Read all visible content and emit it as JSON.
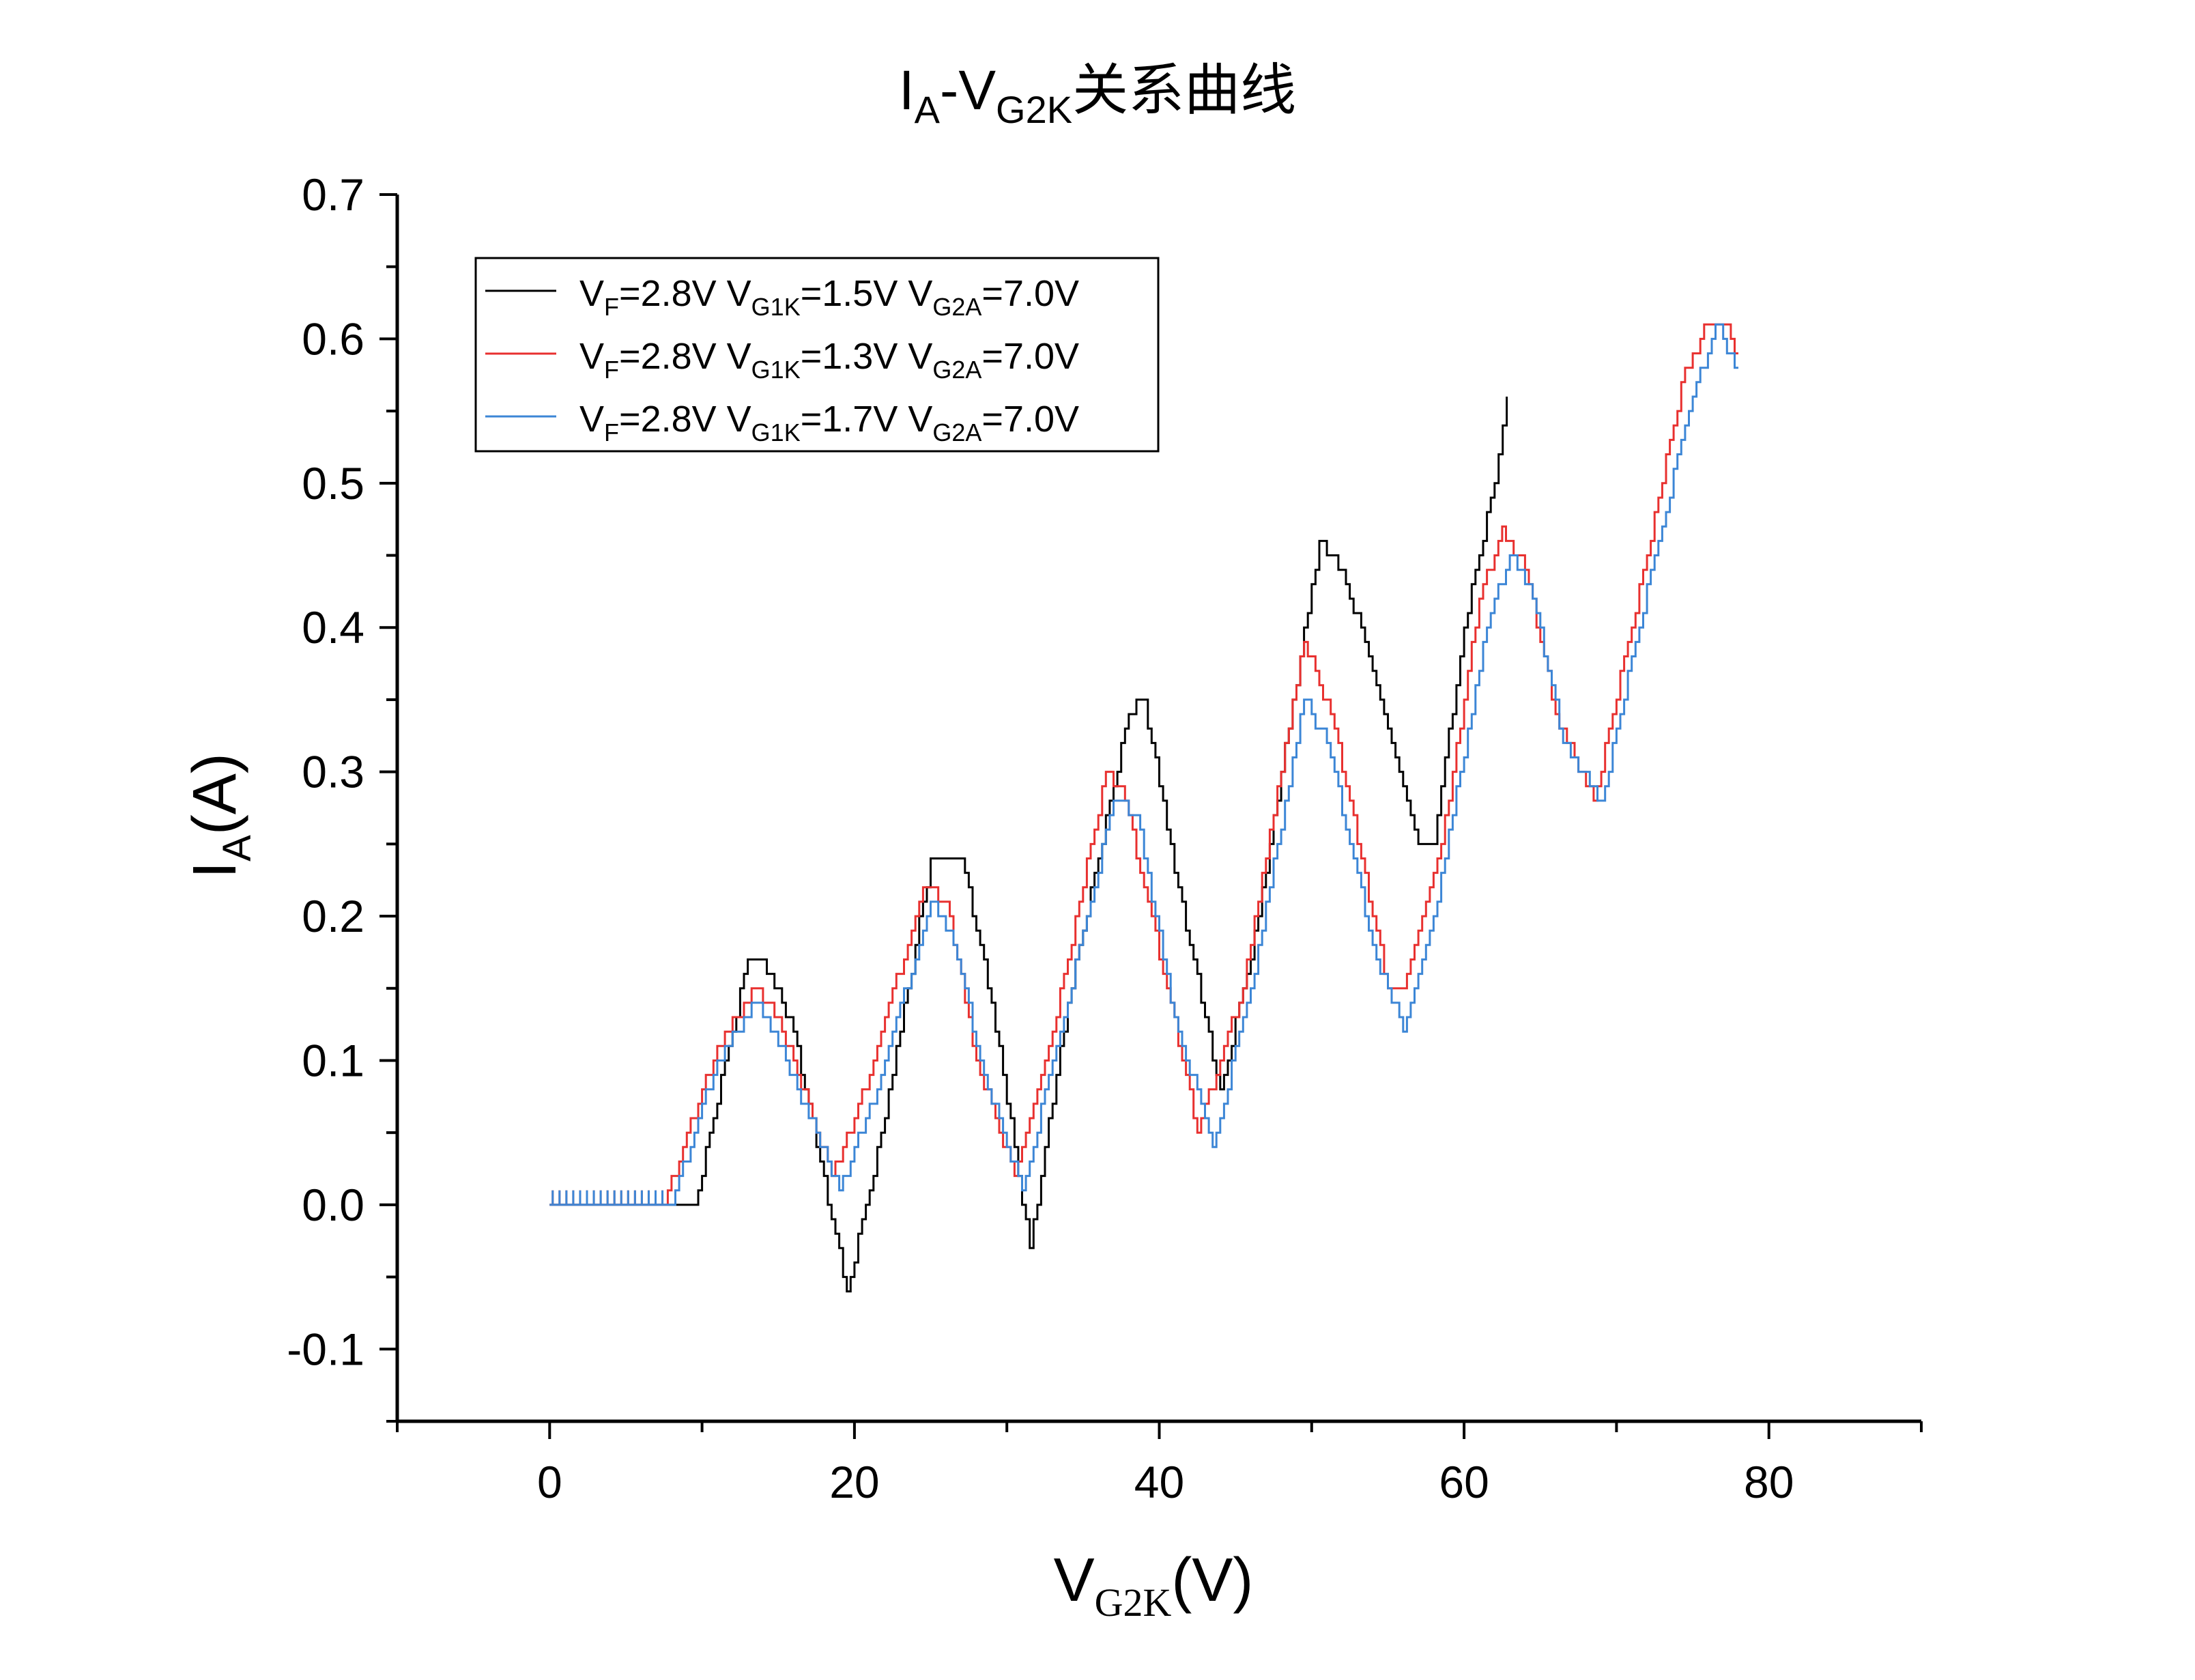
{
  "chart_data": {
    "type": "line",
    "title": {
      "main": "I",
      "sub": "A",
      "main2": "-V",
      "sub2": "G2K",
      "suffix": "关系曲线"
    },
    "xlabel": {
      "main": "V",
      "sub": "G2K",
      "suffix": "(V)"
    },
    "ylabel": {
      "main": "I",
      "sub": "A",
      "suffix": "(A)"
    },
    "xlim": [
      -10,
      90
    ],
    "ylim": [
      -0.15,
      0.7
    ],
    "xticks": [
      0,
      20,
      40,
      60,
      80
    ],
    "xtick_labels": [
      "0",
      "20",
      "40",
      "60",
      "80"
    ],
    "yticks": [
      -0.1,
      0.0,
      0.1,
      0.2,
      0.3,
      0.4,
      0.5,
      0.6,
      0.7
    ],
    "ytick_labels": [
      "-0.1",
      "0.0",
      "0.1",
      "0.2",
      "0.3",
      "0.4",
      "0.5",
      "0.6",
      "0.7"
    ],
    "grid": false,
    "legend_position": "top-left",
    "series": [
      {
        "name": "VF=2.8V VG1K=1.5V VG2A=7.0V",
        "legend_parts": [
          "V",
          "F",
          "=2.8V  V",
          "G1K",
          "=1.5V  V",
          "G2A",
          "=7.0V"
        ],
        "color": "#000000",
        "points": [
          [
            0.0,
            0.0
          ],
          [
            9.5,
            0.0
          ],
          [
            13.0,
            0.17
          ],
          [
            14.0,
            0.17
          ],
          [
            16.0,
            0.12
          ],
          [
            19.5,
            -0.06
          ],
          [
            22.0,
            0.06
          ],
          [
            25.0,
            0.24
          ],
          [
            27.0,
            0.24
          ],
          [
            29.0,
            0.14
          ],
          [
            31.5,
            -0.03
          ],
          [
            34.0,
            0.14
          ],
          [
            38.0,
            0.34
          ],
          [
            39.0,
            0.35
          ],
          [
            41.0,
            0.23
          ],
          [
            44.0,
            0.08
          ],
          [
            46.0,
            0.17
          ],
          [
            50.5,
            0.46
          ],
          [
            52.0,
            0.44
          ],
          [
            54.0,
            0.37
          ],
          [
            57.0,
            0.25
          ],
          [
            58.0,
            0.25
          ],
          [
            60.0,
            0.4
          ],
          [
            62.0,
            0.5
          ],
          [
            62.8,
            0.56
          ]
        ]
      },
      {
        "name": "VF=2.8V VG1K=1.3V VG2A=7.0V",
        "legend_parts": [
          "V",
          "F",
          "=2.8V  V",
          "G1K",
          "=1.3V  V",
          "G2A",
          "=7.0V"
        ],
        "color": "#e8302f",
        "points": [
          [
            0.0,
            0.0
          ],
          [
            7.5,
            0.0
          ],
          [
            11.0,
            0.11
          ],
          [
            13.5,
            0.15
          ],
          [
            15.0,
            0.13
          ],
          [
            18.5,
            0.02
          ],
          [
            21.0,
            0.09
          ],
          [
            24.5,
            0.22
          ],
          [
            26.0,
            0.21
          ],
          [
            28.0,
            0.1
          ],
          [
            30.5,
            0.02
          ],
          [
            33.0,
            0.12
          ],
          [
            36.5,
            0.3
          ],
          [
            37.5,
            0.29
          ],
          [
            40.5,
            0.15
          ],
          [
            42.5,
            0.05
          ],
          [
            45.5,
            0.15
          ],
          [
            49.5,
            0.39
          ],
          [
            51.5,
            0.33
          ],
          [
            55.0,
            0.15
          ],
          [
            56.0,
            0.15
          ],
          [
            58.5,
            0.25
          ],
          [
            61.0,
            0.42
          ],
          [
            62.5,
            0.47
          ],
          [
            64.0,
            0.44
          ],
          [
            66.0,
            0.34
          ],
          [
            68.5,
            0.28
          ],
          [
            72.0,
            0.45
          ],
          [
            74.5,
            0.58
          ],
          [
            76.0,
            0.61
          ],
          [
            77.0,
            0.61
          ],
          [
            78.0,
            0.59
          ]
        ]
      },
      {
        "name": "VF=2.8V VG1K=1.7V VG2A=7.0V",
        "legend_parts": [
          "V",
          "F",
          "=2.8V  V",
          "G1K",
          "=1.7V  V",
          "G2A",
          "=7.0V"
        ],
        "color": "#3c86d6",
        "points": [
          [
            0.0,
            0.0
          ],
          [
            8.0,
            0.0
          ],
          [
            11.0,
            0.1
          ],
          [
            13.5,
            0.14
          ],
          [
            15.5,
            0.1
          ],
          [
            19.0,
            0.01
          ],
          [
            21.5,
            0.08
          ],
          [
            25.0,
            0.21
          ],
          [
            26.5,
            0.18
          ],
          [
            28.5,
            0.09
          ],
          [
            31.0,
            0.01
          ],
          [
            33.5,
            0.12
          ],
          [
            37.0,
            0.28
          ],
          [
            38.5,
            0.27
          ],
          [
            41.0,
            0.13
          ],
          [
            43.5,
            0.04
          ],
          [
            46.0,
            0.15
          ],
          [
            49.5,
            0.35
          ],
          [
            51.0,
            0.32
          ],
          [
            54.0,
            0.18
          ],
          [
            56.0,
            0.12
          ],
          [
            58.0,
            0.2
          ],
          [
            61.5,
            0.4
          ],
          [
            63.0,
            0.45
          ],
          [
            64.5,
            0.42
          ],
          [
            66.5,
            0.32
          ],
          [
            69.0,
            0.28
          ],
          [
            72.5,
            0.45
          ],
          [
            75.0,
            0.56
          ],
          [
            76.5,
            0.61
          ],
          [
            78.0,
            0.58
          ]
        ]
      }
    ]
  },
  "colors": {
    "axis": "#000000",
    "background": "#ffffff"
  }
}
